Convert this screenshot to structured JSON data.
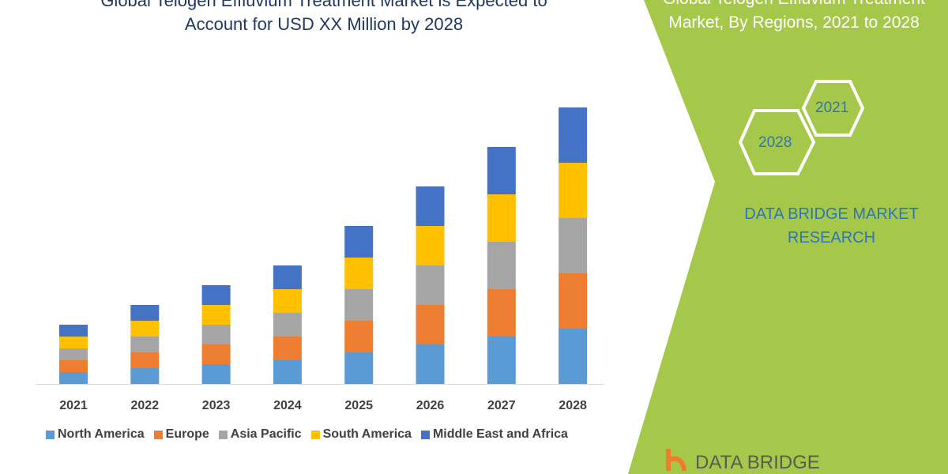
{
  "title_line1": "Global Telogen Effluvium Treatment Market is Expected to",
  "title_line2": "Account for USD XX Million by 2028",
  "side_title_line1": "Global Telogen Effluvium Treatment",
  "side_title_line2": "Market, By Regions, 2021 to 2028",
  "hex_labels": [
    "2021",
    "2028"
  ],
  "brand_line1": "DATA BRIDGE MARKET",
  "brand_line2": "RESEARCH",
  "logo_text": "DATA BRIDGE",
  "colors": {
    "panel": "#a5c84a",
    "brand_text": "#2e75b6"
  },
  "chart_data": {
    "type": "bar",
    "stacked": true,
    "title": "",
    "xlabel": "",
    "ylabel": "",
    "grid": false,
    "legend": "bottom",
    "categories": [
      "2021",
      "2022",
      "2023",
      "2024",
      "2025",
      "2026",
      "2027",
      "2028"
    ],
    "series": [
      {
        "name": "North America",
        "color": "#5b9bd5",
        "values": [
          15,
          20,
          25,
          30,
          40,
          50,
          60,
          70
        ]
      },
      {
        "name": "Europe",
        "color": "#ed7d31",
        "values": [
          15,
          20,
          25,
          30,
          40,
          50,
          60,
          70
        ]
      },
      {
        "name": "Asia Pacific",
        "color": "#a5a5a5",
        "values": [
          15,
          20,
          25,
          30,
          40,
          50,
          60,
          70
        ]
      },
      {
        "name": "South America",
        "color": "#ffc000",
        "values": [
          15,
          20,
          25,
          30,
          40,
          50,
          60,
          70
        ]
      },
      {
        "name": "Middle East and Africa",
        "color": "#4472c4",
        "values": [
          15,
          20,
          25,
          30,
          40,
          50,
          60,
          70
        ]
      }
    ]
  }
}
